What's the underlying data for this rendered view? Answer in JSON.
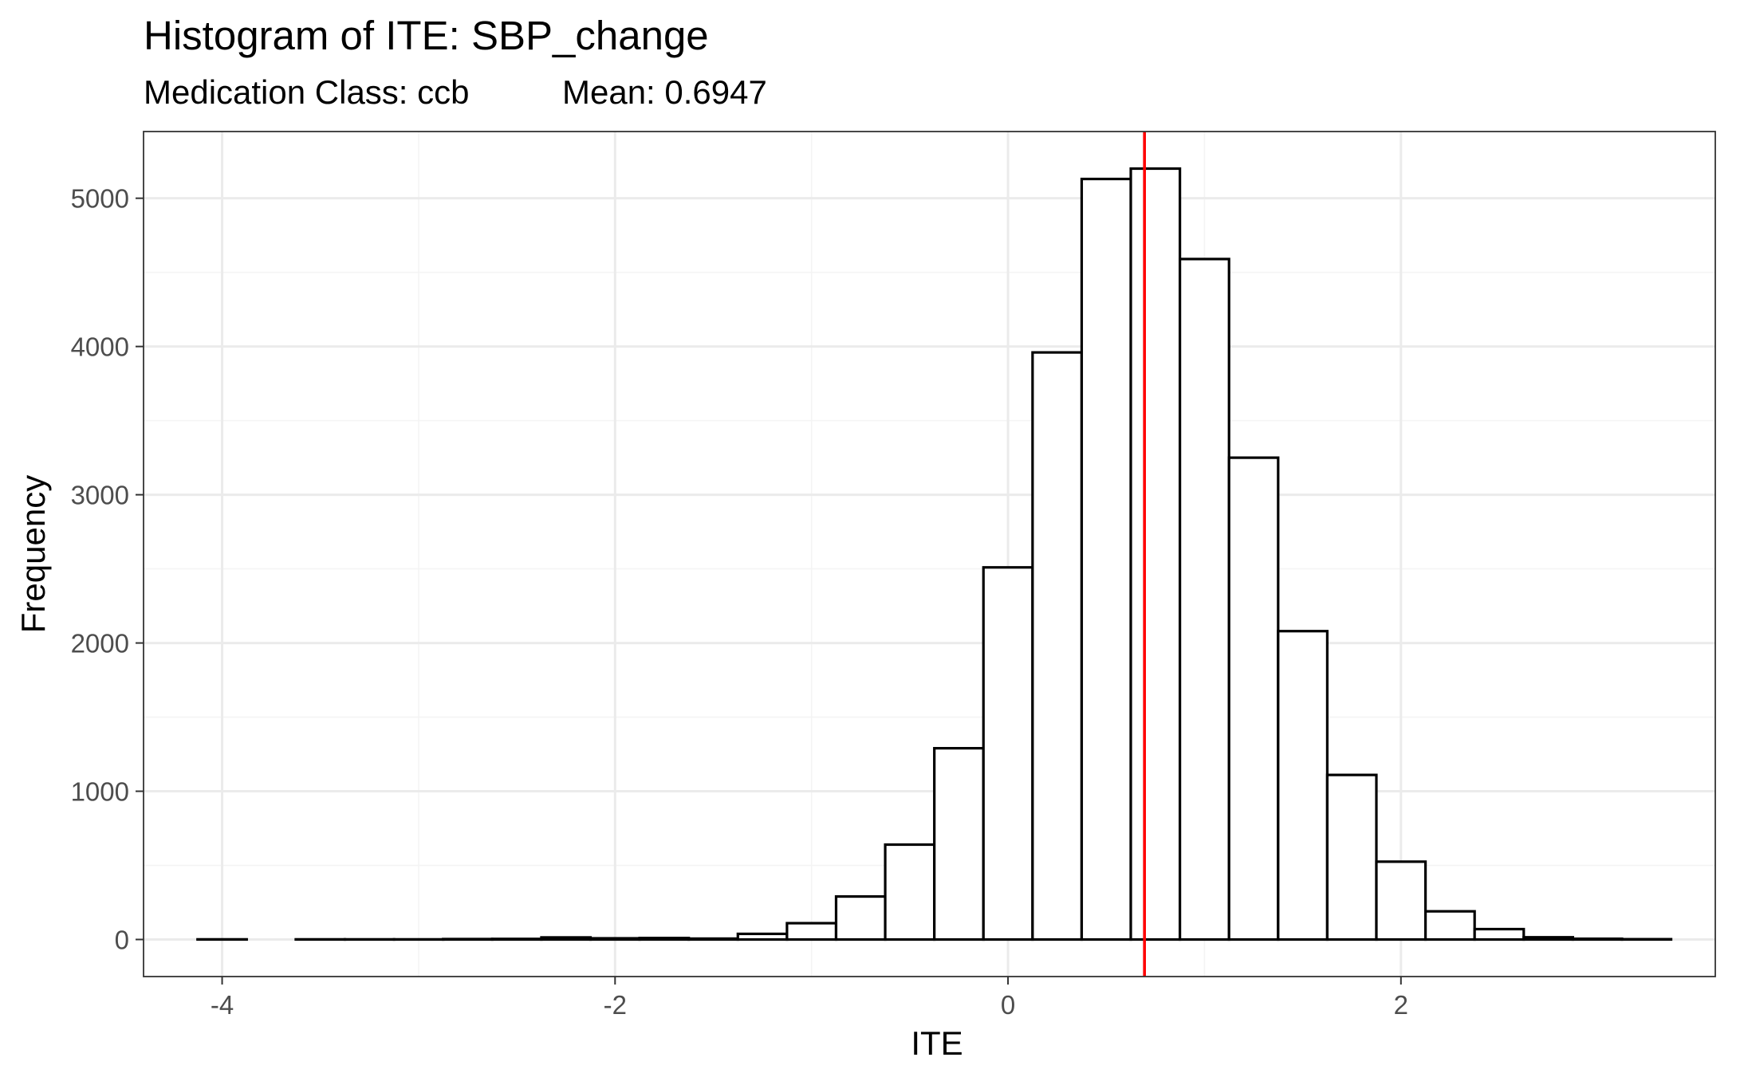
{
  "chart_data": {
    "type": "bar",
    "title": "Histogram of ITE: SBP_change",
    "subtitle_left": "Medication Class: ccb",
    "subtitle_right": "Mean: 0.6947",
    "xlabel": "ITE",
    "ylabel": "Frequency",
    "xlim": [
      -4.4,
      3.6
    ],
    "ylim": [
      -250,
      5450
    ],
    "x_ticks": [
      -4,
      -2,
      0,
      2
    ],
    "x_tick_labels": [
      "-4",
      "-2",
      "0",
      "2"
    ],
    "y_ticks": [
      0,
      1000,
      2000,
      3000,
      4000,
      5000
    ],
    "y_tick_labels": [
      "0",
      "1000",
      "2000",
      "3000",
      "4000",
      "5000"
    ],
    "grid": true,
    "bin_width": 0.25,
    "bin_edges": [
      -4.125,
      -3.875,
      -3.625,
      -3.375,
      -3.125,
      -2.875,
      -2.625,
      -2.375,
      -2.125,
      -1.875,
      -1.625,
      -1.375,
      -1.125,
      -0.875,
      -0.625,
      -0.375,
      -0.125,
      0.125,
      0.375,
      0.625,
      0.875,
      1.125,
      1.375,
      1.625,
      1.875,
      2.125,
      2.375,
      2.625,
      2.875,
      3.125,
      3.375
    ],
    "counts": [
      1,
      0,
      1,
      1,
      1,
      3,
      4,
      14,
      8,
      10,
      6,
      38,
      110,
      290,
      640,
      1290,
      2510,
      3960,
      5130,
      5200,
      4590,
      3250,
      2080,
      1110,
      525,
      190,
      70,
      15,
      5,
      2
    ],
    "mean": 0.6947,
    "colors": {
      "bar_fill": "#ffffff",
      "bar_stroke": "#000000",
      "mean_line": "#ff0000",
      "grid_major": "#ebebeb",
      "grid_minor": "#f4f4f4",
      "panel_border": "#333333"
    }
  }
}
